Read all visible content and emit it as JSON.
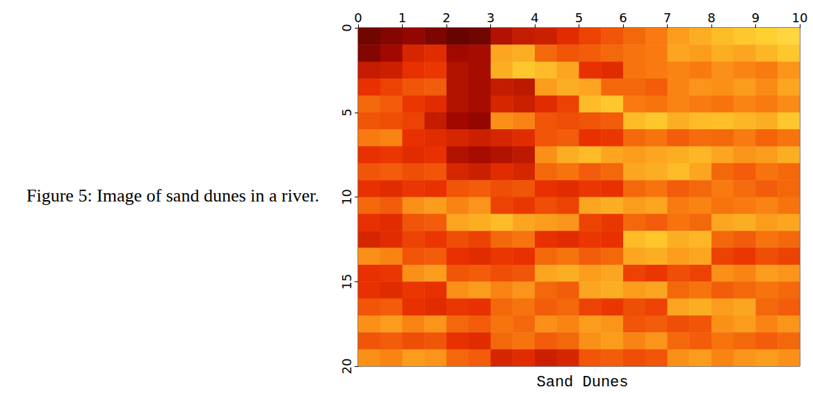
{
  "chart_data": {
    "type": "heatmap",
    "title": "Sand Dunes",
    "caption": "Figure 5: Image of sand dunes in a river.",
    "xlim": [
      0,
      10
    ],
    "xticks": [
      0,
      1,
      2,
      3,
      4,
      5,
      6,
      7,
      8,
      9,
      10
    ],
    "ylim": [
      0,
      20
    ],
    "yticks": [
      0,
      5,
      10,
      15,
      20
    ],
    "x_bins": [
      0,
      0.5,
      1,
      1.5,
      2,
      2.5,
      3,
      3.5,
      4,
      4.5,
      5,
      5.5,
      6,
      6.5,
      7,
      7.5,
      8,
      8.5,
      9,
      9.5,
      10
    ],
    "y_bins": [
      0,
      1,
      2,
      3,
      4,
      5,
      6,
      7,
      8,
      9,
      10,
      11,
      12,
      13,
      14,
      15,
      16,
      17,
      18,
      19,
      20
    ],
    "zlim": [
      0,
      1
    ],
    "cells": [
      [
        0.12,
        0.15,
        0.18,
        0.14,
        0.1,
        0.12,
        0.25,
        0.3,
        0.32,
        0.38,
        0.45,
        0.5,
        0.55,
        0.6,
        0.68,
        0.72,
        0.75,
        0.78,
        0.8,
        0.82
      ],
      [
        0.15,
        0.2,
        0.35,
        0.38,
        0.2,
        0.22,
        0.7,
        0.72,
        0.55,
        0.5,
        0.52,
        0.55,
        0.58,
        0.6,
        0.7,
        0.68,
        0.72,
        0.7,
        0.74,
        0.78
      ],
      [
        0.3,
        0.32,
        0.4,
        0.42,
        0.25,
        0.22,
        0.72,
        0.78,
        0.75,
        0.7,
        0.4,
        0.38,
        0.58,
        0.6,
        0.62,
        0.6,
        0.65,
        0.62,
        0.6,
        0.66
      ],
      [
        0.4,
        0.45,
        0.5,
        0.52,
        0.25,
        0.22,
        0.3,
        0.28,
        0.68,
        0.72,
        0.7,
        0.55,
        0.55,
        0.52,
        0.62,
        0.66,
        0.65,
        0.68,
        0.64,
        0.7
      ],
      [
        0.55,
        0.52,
        0.42,
        0.38,
        0.25,
        0.22,
        0.35,
        0.32,
        0.38,
        0.45,
        0.75,
        0.78,
        0.6,
        0.58,
        0.62,
        0.6,
        0.58,
        0.62,
        0.6,
        0.64
      ],
      [
        0.5,
        0.48,
        0.45,
        0.3,
        0.2,
        0.18,
        0.65,
        0.62,
        0.5,
        0.48,
        0.5,
        0.52,
        0.75,
        0.78,
        0.72,
        0.75,
        0.76,
        0.74,
        0.72,
        0.78
      ],
      [
        0.6,
        0.62,
        0.4,
        0.38,
        0.35,
        0.32,
        0.35,
        0.38,
        0.5,
        0.52,
        0.4,
        0.42,
        0.55,
        0.58,
        0.52,
        0.56,
        0.55,
        0.6,
        0.54,
        0.58
      ],
      [
        0.4,
        0.42,
        0.38,
        0.4,
        0.25,
        0.22,
        0.25,
        0.28,
        0.65,
        0.72,
        0.75,
        0.7,
        0.68,
        0.7,
        0.72,
        0.74,
        0.7,
        0.66,
        0.68,
        0.72
      ],
      [
        0.5,
        0.52,
        0.48,
        0.5,
        0.35,
        0.32,
        0.38,
        0.35,
        0.55,
        0.58,
        0.52,
        0.55,
        0.7,
        0.72,
        0.75,
        0.7,
        0.55,
        0.52,
        0.58,
        0.55
      ],
      [
        0.4,
        0.38,
        0.42,
        0.4,
        0.5,
        0.52,
        0.48,
        0.5,
        0.4,
        0.38,
        0.42,
        0.4,
        0.55,
        0.58,
        0.52,
        0.55,
        0.6,
        0.56,
        0.52,
        0.55
      ],
      [
        0.55,
        0.52,
        0.65,
        0.68,
        0.62,
        0.66,
        0.45,
        0.42,
        0.48,
        0.45,
        0.7,
        0.72,
        0.68,
        0.7,
        0.6,
        0.62,
        0.58,
        0.6,
        0.62,
        0.58
      ],
      [
        0.4,
        0.38,
        0.5,
        0.52,
        0.7,
        0.72,
        0.75,
        0.7,
        0.68,
        0.66,
        0.45,
        0.42,
        0.55,
        0.52,
        0.58,
        0.55,
        0.7,
        0.72,
        0.68,
        0.7
      ],
      [
        0.35,
        0.38,
        0.45,
        0.42,
        0.48,
        0.45,
        0.55,
        0.58,
        0.4,
        0.38,
        0.42,
        0.4,
        0.75,
        0.78,
        0.72,
        0.74,
        0.55,
        0.52,
        0.58,
        0.55
      ],
      [
        0.65,
        0.62,
        0.5,
        0.52,
        0.4,
        0.38,
        0.42,
        0.4,
        0.55,
        0.58,
        0.52,
        0.55,
        0.7,
        0.72,
        0.68,
        0.7,
        0.45,
        0.42,
        0.48,
        0.45
      ],
      [
        0.4,
        0.42,
        0.65,
        0.68,
        0.5,
        0.52,
        0.48,
        0.5,
        0.7,
        0.72,
        0.68,
        0.7,
        0.45,
        0.42,
        0.48,
        0.45,
        0.65,
        0.62,
        0.68,
        0.66
      ],
      [
        0.4,
        0.38,
        0.42,
        0.4,
        0.65,
        0.68,
        0.62,
        0.66,
        0.55,
        0.52,
        0.7,
        0.72,
        0.68,
        0.7,
        0.55,
        0.58,
        0.52,
        0.55,
        0.58,
        0.55
      ],
      [
        0.5,
        0.52,
        0.4,
        0.38,
        0.42,
        0.4,
        0.55,
        0.58,
        0.52,
        0.55,
        0.45,
        0.42,
        0.48,
        0.45,
        0.7,
        0.72,
        0.68,
        0.7,
        0.55,
        0.52
      ],
      [
        0.65,
        0.68,
        0.62,
        0.66,
        0.55,
        0.52,
        0.58,
        0.55,
        0.65,
        0.62,
        0.68,
        0.66,
        0.5,
        0.52,
        0.48,
        0.5,
        0.65,
        0.68,
        0.62,
        0.66
      ],
      [
        0.5,
        0.52,
        0.48,
        0.5,
        0.4,
        0.38,
        0.55,
        0.58,
        0.52,
        0.55,
        0.65,
        0.68,
        0.62,
        0.66,
        0.55,
        0.52,
        0.58,
        0.55,
        0.52,
        0.55
      ],
      [
        0.65,
        0.62,
        0.68,
        0.66,
        0.55,
        0.52,
        0.35,
        0.38,
        0.32,
        0.35,
        0.5,
        0.52,
        0.48,
        0.5,
        0.65,
        0.68,
        0.62,
        0.66,
        0.68,
        0.65
      ]
    ]
  }
}
